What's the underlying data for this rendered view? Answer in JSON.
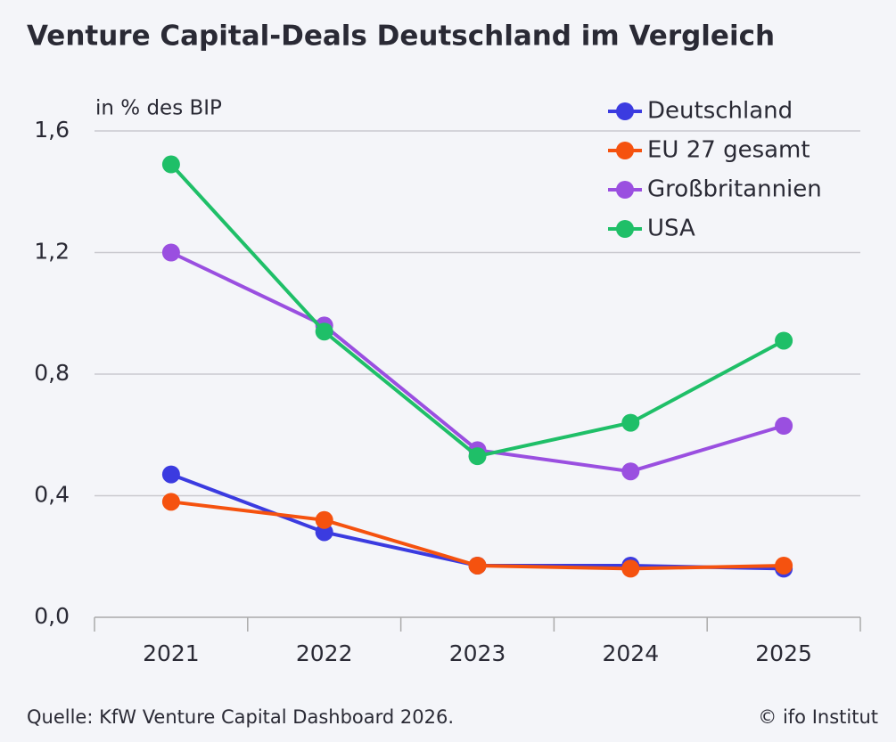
{
  "chart_data": {
    "type": "line",
    "title": "Venture Capital-Deals Deutschland im Vergleich",
    "y_label": "in % des BIP",
    "source": "Quelle: KfW Venture Capital Dashboard 2026.",
    "credit": "© ifo Institut",
    "categories": [
      "2021",
      "2022",
      "2023",
      "2024",
      "2025"
    ],
    "series": [
      {
        "name": "Deutschland",
        "color": "#3b3be0",
        "values": [
          0.47,
          0.28,
          0.17,
          0.17,
          0.16
        ]
      },
      {
        "name": "EU 27 gesamt",
        "color": "#f5520f",
        "values": [
          0.38,
          0.32,
          0.17,
          0.16,
          0.17
        ]
      },
      {
        "name": "Großbritannien",
        "color": "#9a4fe0",
        "values": [
          1.2,
          0.96,
          0.55,
          0.48,
          0.63
        ]
      },
      {
        "name": "USA",
        "color": "#1fbf68",
        "values": [
          1.49,
          0.94,
          0.53,
          0.64,
          0.91
        ]
      }
    ],
    "ylim": [
      0,
      1.6
    ],
    "yticks": [
      {
        "value": 0,
        "label": "0,0"
      },
      {
        "value": 0.4,
        "label": "0,4"
      },
      {
        "value": 0.8,
        "label": "0,8"
      },
      {
        "value": 1.2,
        "label": "1,2"
      },
      {
        "value": 1.6,
        "label": "1,6"
      }
    ],
    "grid": true,
    "legend": "top-right"
  }
}
